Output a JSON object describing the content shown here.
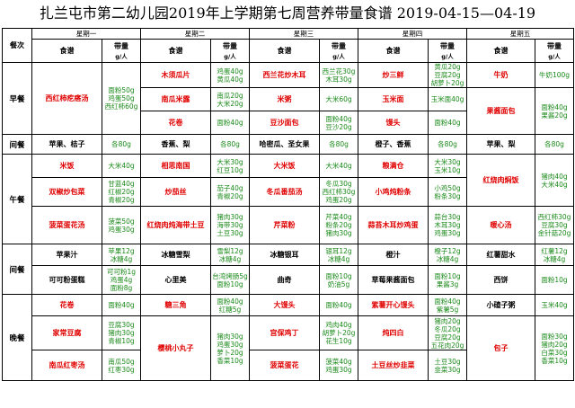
{
  "title": "扎兰屯市第二幼儿园2019年上学期第七周营养带量食谱  2019-04-15—04-19",
  "header": {
    "meal_label": "餐次",
    "recipe_label": "食谱",
    "amount_label": "带量",
    "unit_label": "g/人",
    "days": [
      "星期一",
      "星期二",
      "星期三",
      "星期四",
      "星期五"
    ]
  },
  "meals": {
    "breakfast": "早餐",
    "snack1": "间餐",
    "lunch": "午餐",
    "snack2": "间餐",
    "dinner": "晚餐"
  },
  "breakfast": {
    "r1": {
      "mon": {
        "dish": "西红柿疙瘩汤",
        "amount": "面粉50g\n鸡蛋50g\n西红柿60g"
      },
      "tue": {
        "dish": "木须瓜片",
        "amount": "鸡蛋40g\n黄瓜40g"
      },
      "wed": {
        "dish": "西兰花炒木耳",
        "amount": "西兰花30g\n木耳30g"
      },
      "thu": {
        "dish": "炒三鲜",
        "amount": "黄瓜20g\n豆腐20g\n胡萝卜20g"
      },
      "fri": {
        "dish": "牛奶",
        "amount": "牛奶100g"
      }
    },
    "r2": {
      "tue": {
        "dish": "南瓜米露",
        "amount": "南瓜20g\n大米20g"
      },
      "wed": {
        "dish": "米粥",
        "amount": "大米60g"
      },
      "thu": {
        "dish": "玉米面",
        "amount": "玉米面40g"
      },
      "fri": {
        "dish": "果酱面包",
        "amount": "面粉40g\n果酱20g"
      }
    },
    "r3": {
      "tue": {
        "dish": "花卷",
        "amount": "面粉40g"
      },
      "wed": {
        "dish": "豆沙面包",
        "amount": "面粉40g\n豆沙20g"
      },
      "thu": {
        "dish": "馒头",
        "amount": "面粉40g"
      }
    }
  },
  "snack1": {
    "mon": {
      "dish": "苹果、桔子",
      "amount": "各80g"
    },
    "tue": {
      "dish": "香蕉、梨",
      "amount": "各80g"
    },
    "wed": {
      "dish": "哈密瓜、圣女果",
      "amount": "各80g"
    },
    "thu": {
      "dish": "橙子、香蕉",
      "amount": "各80g"
    },
    "fri": {
      "dish": "苹果、梨",
      "amount": "各80g"
    }
  },
  "lunch": {
    "r1": {
      "mon": {
        "dish": "米饭",
        "amount": "大米40g"
      },
      "tue": {
        "dish": "相思南国",
        "amount": "大米30g\n红豆10g"
      },
      "wed": {
        "dish": "大米饭",
        "amount": "大米40g"
      },
      "thu": {
        "dish": "粮满仓",
        "amount": "大米30g\n玉米10g"
      },
      "fri": {
        "dish": "红烧肉焖饭",
        "amount": "猪肉40g\n大米40g"
      }
    },
    "r2": {
      "mon": {
        "dish": "双椒炒包菜",
        "amount": "甘蓝40g\n红椒20g\n青椒20g"
      },
      "tue": {
        "dish": "炒茄丝",
        "amount": "茄子40g\n青椒20g"
      },
      "wed": {
        "dish": "冬瓜番茄汤",
        "amount": "冬瓜30g\n西红柿30g\n鸡蛋20g"
      },
      "thu": {
        "dish": "小鸡炖粉条",
        "amount": "小鸡50g\n粉条30g"
      }
    },
    "r3": {
      "mon": {
        "dish": "菠菜蛋花汤",
        "amount": "菠菜50g\n鸡蛋30g"
      },
      "tue": {
        "dish": "红烧肉炖海带土豆",
        "amount": "猪肉30g\n海带30g\n土豆30g"
      },
      "wed": {
        "dish": "芹菜粉",
        "amount": "芹菜40g\n粉条20g\n猪肉30g"
      },
      "thu": {
        "dish": "蒜苔木耳炒鸡蛋",
        "amount": "蒜台30g\n木耳30g\n鸡蛋30g"
      },
      "fri": {
        "dish": "暖心汤",
        "amount": "西红柿30g\n豆腐30g\n金针菇20g"
      }
    }
  },
  "snack2": {
    "r1": {
      "mon": {
        "dish": "苹果汁",
        "amount": "苹果12g\n冰糖4g"
      },
      "tue": {
        "dish": "冰糖雪梨",
        "amount": "雪梨12g\n冰糖4g"
      },
      "wed": {
        "dish": "冰糖银耳",
        "amount": "银耳12g\n冰糖4g"
      },
      "thu": {
        "dish": "橙汁",
        "amount": "橙子12g\n冰糖4g"
      },
      "fri": {
        "dish": "红薯甜水",
        "amount": "红薯12g\n冰糖4g"
      }
    },
    "r2": {
      "mon": {
        "dish": "可可粉蛋糕",
        "amount": "可可粉1g\n鸡蛋4g\n面粉8g"
      },
      "tue": {
        "dish": "心里美",
        "amount": "台湾烤肠5g\n面粉10g"
      },
      "wed": {
        "dish": "曲奇",
        "amount": "面粉10g\n奶油5g"
      },
      "thu": {
        "dish": "草莓果酱面包",
        "amount": "面粉10g\n果酱3g"
      },
      "fri": {
        "dish": "西饼",
        "amount": "面粉10g"
      }
    }
  },
  "dinner": {
    "r1": {
      "mon": {
        "dish": "花卷",
        "amount": "面粉40g"
      },
      "tue": {
        "dish": "糖三角",
        "amount": "面粉40g\n红糖5g"
      },
      "wed": {
        "dish": "大馒头",
        "amount": "面粉40g"
      },
      "thu": {
        "dish": "紫薯开心馒头",
        "amount": "面粉40g\n紫薯5g"
      },
      "fri": {
        "dish": "小碴子粥",
        "amount": "玉米40g"
      }
    },
    "r2": {
      "mon": {
        "dish": "家常豆腐",
        "amount": "豆腐30g\n猪肉30g\n青椒10g"
      },
      "tue": {
        "dish": "樱桃小丸子",
        "amount": "猪肉30g\n鸡蛋30g\n萝卜20g\n香菜10g"
      },
      "wed": {
        "dish": "宫保鸡丁",
        "amount": "鸡肉40g\n胡萝卜20g\n花生10g"
      },
      "thu": {
        "dish": "炖四白",
        "amount": "猪肉20g\n冬瓜20g\n豆腐20g\n五花肉20g"
      },
      "fri": {
        "dish": "包子",
        "amount": "面粉30g\n猪肉20g\n白菜30g\n香菜10g"
      }
    },
    "r3": {
      "mon": {
        "dish": "南瓜红枣汤",
        "amount": "南瓜50g\n红枣30g"
      },
      "wed": {
        "dish": "菠菜蛋花",
        "amount": "菠菜40g\n鸡蛋30g"
      },
      "thu": {
        "dish": "土豆丝炒韭菜",
        "amount": "土豆30g\n韭菜30g"
      }
    }
  }
}
